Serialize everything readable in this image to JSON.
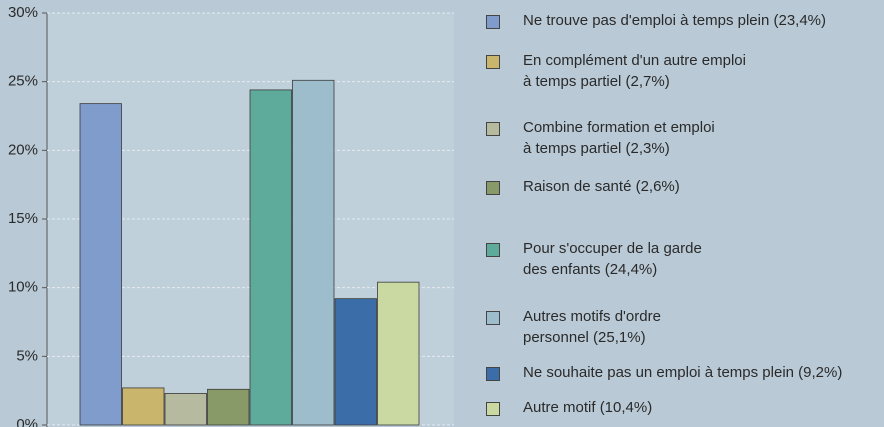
{
  "chart_data": {
    "type": "bar",
    "categories": [
      "Ne trouve pas d'emploi à temps plein (23,4%)",
      "En complément d'un autre emploi\nà temps partiel (2,7%)",
      "Combine formation et emploi\nà temps partiel (2,3%)",
      "Raison de santé (2,6%)",
      "Pour s'occuper de la garde\ndes enfants (24,4%)",
      "Autres motifs d'ordre\npersonnel (25,1%)",
      "Ne souhaite pas un emploi à temps plein (9,2%)",
      "Autre motif (10,4%)"
    ],
    "values": [
      23.4,
      2.7,
      2.3,
      2.6,
      24.4,
      25.1,
      9.2,
      10.4
    ],
    "colors": [
      "#7f9ccc",
      "#c9b66c",
      "#b6bb9f",
      "#889a68",
      "#5eab9b",
      "#9dbdcd",
      "#3b6ea8",
      "#cad9a2"
    ],
    "ylim": [
      0,
      30
    ],
    "yticks": [
      {
        "value": 0,
        "label": "0%"
      },
      {
        "value": 5,
        "label": "5%"
      },
      {
        "value": 10,
        "label": "10%"
      },
      {
        "value": 15,
        "label": "15%"
      },
      {
        "value": 20,
        "label": "20%"
      },
      {
        "value": 25,
        "label": "25%"
      },
      {
        "value": 30,
        "label": "30%"
      }
    ],
    "grid": true
  }
}
